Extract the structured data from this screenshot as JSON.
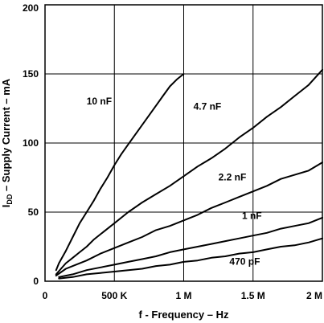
{
  "chart_data": {
    "type": "line",
    "xlabel": "f - Frequency – Hz",
    "ylabel_main": "I",
    "ylabel_sub": "DD",
    "ylabel_rest": " – Supply Current – mA",
    "xlim": [
      0,
      2000000
    ],
    "ylim": [
      0,
      200
    ],
    "grid": true,
    "x_ticks": [
      {
        "value": 0,
        "label": "0"
      },
      {
        "value": 500000,
        "label": "500 K"
      },
      {
        "value": 1000000,
        "label": "1 M"
      },
      {
        "value": 1500000,
        "label": "1.5 M"
      },
      {
        "value": 2000000,
        "label": "2 M"
      }
    ],
    "y_ticks": [
      {
        "value": 0,
        "label": "0"
      },
      {
        "value": 50,
        "label": "50"
      },
      {
        "value": 100,
        "label": "100"
      },
      {
        "value": 150,
        "label": "150"
      },
      {
        "value": 200,
        "label": "200"
      }
    ],
    "series": [
      {
        "name": "10 nF",
        "label_at": [
          300000,
          128
        ],
        "x": [
          80000,
          100000,
          150000,
          200000,
          250000,
          300000,
          350000,
          400000,
          450000,
          500000,
          550000,
          600000,
          650000,
          700000,
          750000,
          800000,
          850000,
          900000,
          950000,
          1000000
        ],
        "y": [
          8,
          13,
          22,
          32,
          42,
          50,
          58,
          67,
          75,
          84,
          92,
          99,
          106,
          113,
          120,
          127,
          134,
          141,
          146,
          150
        ]
      },
      {
        "name": "4.7 nF",
        "label_at": [
          1070000,
          124
        ],
        "x": [
          80000,
          150000,
          200000,
          250000,
          300000,
          350000,
          400000,
          500000,
          600000,
          700000,
          800000,
          900000,
          1000000,
          1100000,
          1200000,
          1300000,
          1400000,
          1500000,
          1600000,
          1700000,
          1800000,
          1900000,
          2000000
        ],
        "y": [
          5,
          13,
          17,
          21,
          25,
          30,
          34,
          42,
          50,
          57,
          63,
          69,
          76,
          83,
          89,
          96,
          104,
          111,
          119,
          126,
          134,
          142,
          153
        ]
      },
      {
        "name": "2.2 nF",
        "label_at": [
          1250000,
          73
        ],
        "x": [
          80000,
          150000,
          200000,
          300000,
          400000,
          500000,
          600000,
          700000,
          800000,
          900000,
          1000000,
          1100000,
          1200000,
          1300000,
          1400000,
          1500000,
          1600000,
          1700000,
          1800000,
          1900000,
          2000000
        ],
        "y": [
          4,
          9,
          11,
          15,
          20,
          24,
          28,
          32,
          37,
          40,
          44,
          48,
          53,
          57,
          61,
          65,
          69,
          74,
          77,
          80,
          86
        ]
      },
      {
        "name": "1 nF",
        "label_at": [
          1420000,
          45
        ],
        "x": [
          100000,
          200000,
          300000,
          400000,
          500000,
          600000,
          700000,
          800000,
          900000,
          1000000,
          1100000,
          1200000,
          1300000,
          1400000,
          1500000,
          1600000,
          1700000,
          1800000,
          1900000,
          2000000
        ],
        "y": [
          3,
          5,
          8,
          10,
          12,
          14,
          16,
          18,
          21,
          23,
          25,
          27,
          29,
          31,
          33,
          35,
          38,
          40,
          42,
          46
        ]
      },
      {
        "name": "470 pF",
        "label_at": [
          1330000,
          12
        ],
        "x": [
          100000,
          200000,
          300000,
          400000,
          500000,
          600000,
          700000,
          800000,
          900000,
          1000000,
          1100000,
          1200000,
          1300000,
          1400000,
          1500000,
          1600000,
          1700000,
          1800000,
          1900000,
          2000000
        ],
        "y": [
          2,
          3,
          5,
          6,
          7,
          8,
          9,
          11,
          12,
          14,
          15,
          17,
          18,
          20,
          21,
          23,
          25,
          26,
          28,
          31
        ]
      }
    ]
  }
}
